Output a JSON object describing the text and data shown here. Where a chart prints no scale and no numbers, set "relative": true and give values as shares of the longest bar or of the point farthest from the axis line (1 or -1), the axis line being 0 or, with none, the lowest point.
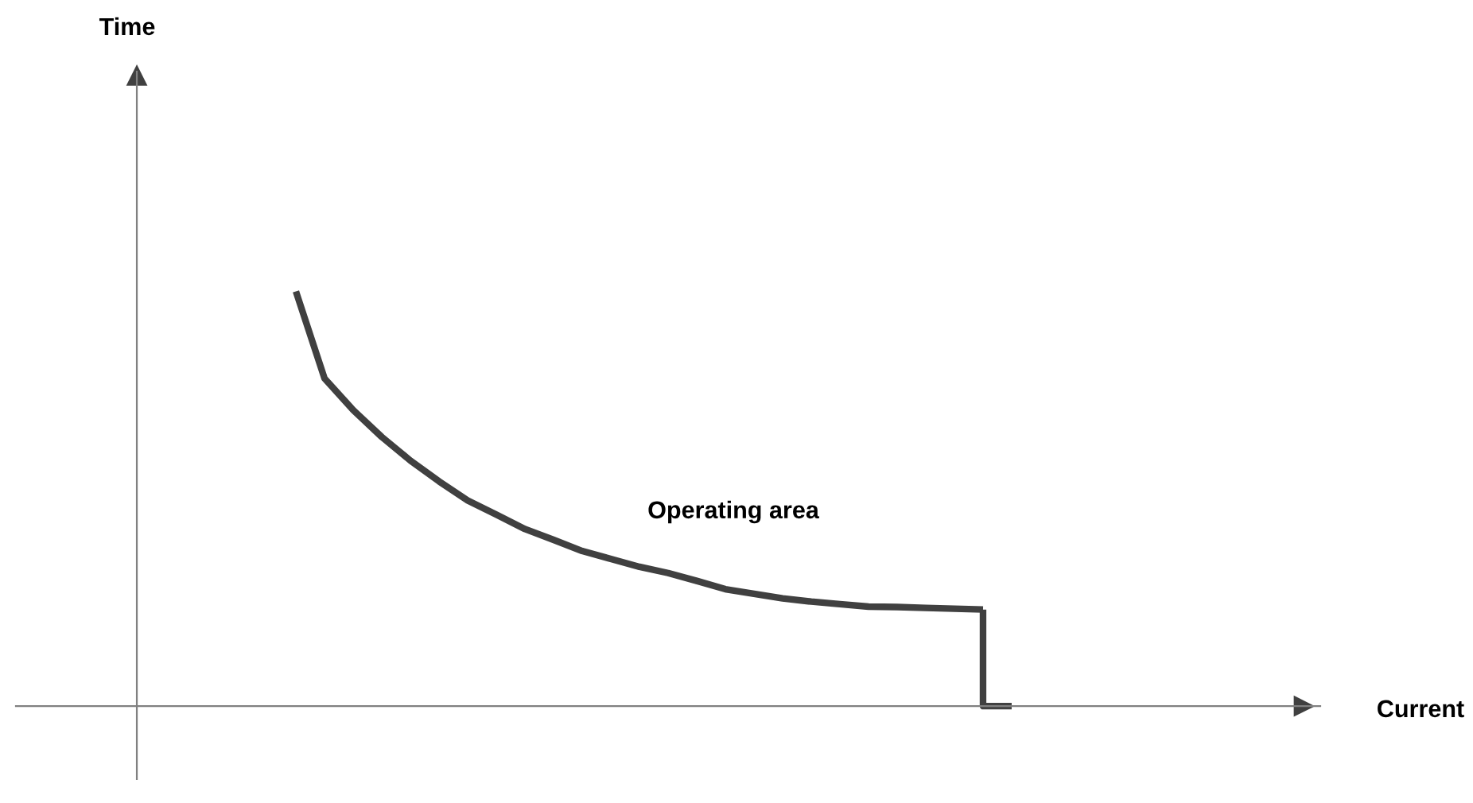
{
  "chart_data": {
    "type": "line",
    "relative": true,
    "annotations": [
      "Time",
      "Current",
      "Operating area"
    ],
    "categories": [
      null,
      null,
      null,
      null,
      null,
      null,
      null,
      null,
      null,
      null,
      null,
      null,
      null,
      null,
      null,
      null,
      null,
      null,
      null,
      null,
      null,
      null,
      null,
      null,
      null,
      null
    ],
    "series": [
      {
        "color": "#404040",
        "values": [
          1,
          0.79,
          0.714,
          0.649,
          0.592,
          0.542,
          0.496,
          0.462,
          0.427,
          0.401,
          0.374,
          0.355,
          0.336,
          0.321,
          0.302,
          0.282,
          0.271,
          0.26,
          0.252,
          0.246,
          0.24,
          0.239,
          0.237,
          0.235,
          0.233,
          null
        ]
      },
      {
        "type": "step",
        "color": "#404040",
        "values": [
          null,
          null,
          null,
          null,
          null,
          null,
          null,
          null,
          null,
          null,
          null,
          null,
          null,
          null,
          null,
          null,
          null,
          null,
          null,
          null,
          null,
          null,
          null,
          null,
          0.233,
          0
        ]
      }
    ],
    "marker": "none",
    "line_style": "solid"
  }
}
